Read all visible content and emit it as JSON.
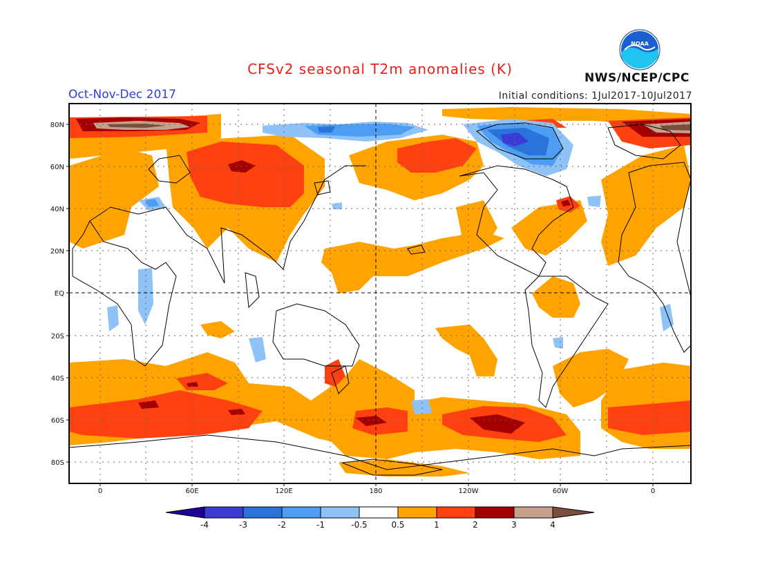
{
  "header": {
    "title": "CFSv2 seasonal T2m anomalies (K)",
    "season": "Oct-Nov-Dec 2017",
    "initial_conditions": "Initial conditions: 1Jul2017-10Jul2017",
    "agency": "NWS/NCEP/CPC",
    "logo_text": "NOAA"
  },
  "map": {
    "projection": "cylindrical",
    "lat_labels": [
      "80N",
      "60N",
      "40N",
      "20N",
      "EQ",
      "20S",
      "40S",
      "60S",
      "80S"
    ],
    "lon_labels": [
      "0",
      "60E",
      "120E",
      "180",
      "120W",
      "60W",
      "0"
    ],
    "grid": "dotted",
    "reference_lines": [
      "EQ",
      "180"
    ]
  },
  "colorbar": {
    "labels": [
      "-4",
      "-3",
      "-2",
      "-1",
      "-0.5",
      "0.5",
      "1",
      "2",
      "3",
      "4"
    ],
    "colors": [
      "#1e0096",
      "#3d3bd6",
      "#2a73da",
      "#4d9df2",
      "#8fc3f8",
      "#ffffff",
      "#ffa300",
      "#ff4010",
      "#a50000",
      "#c7a08c",
      "#7a4e3c"
    ]
  },
  "anomaly_colors": {
    "orange": "#ffa300",
    "red": "#ff4010",
    "darkred": "#a50000",
    "tan": "#c7a08c",
    "brown": "#7a4e3c",
    "lightblue": "#8fc3f8",
    "blue": "#4d9df2",
    "medblue": "#2a73da",
    "darkblue": "#3d3bd6"
  }
}
